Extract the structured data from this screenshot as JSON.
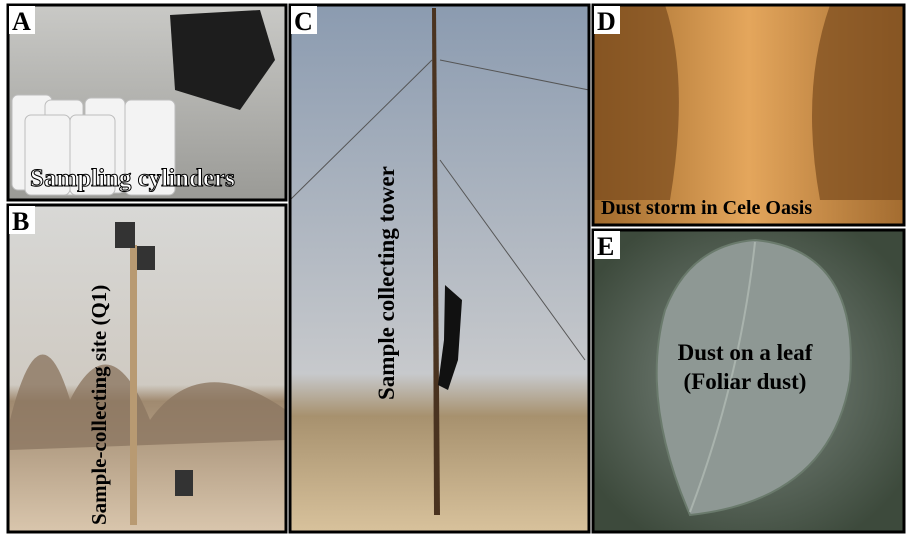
{
  "panels": [
    {
      "letter": "A",
      "caption": "Sampling cylinders"
    },
    {
      "letter": "B",
      "caption": "Sample-collecting site (Q1)"
    },
    {
      "letter": "C",
      "caption": "Sample collecting tower"
    },
    {
      "letter": "D",
      "caption": "Dust storm in Cele Oasis"
    },
    {
      "letter": "E",
      "caption": [
        "Dust on a leaf",
        "(Foliar dust)"
      ]
    }
  ]
}
